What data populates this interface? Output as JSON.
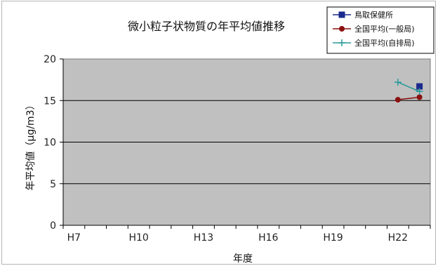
{
  "chart_data": {
    "type": "line",
    "title": "微小粒子状物質の年平均値推移",
    "xlabel": "年度",
    "ylabel": "年平均値（μg/m3）",
    "x_tick_labels": [
      "H7",
      "H10",
      "H13",
      "H16",
      "H19",
      "H22"
    ],
    "x_categories": [
      "H7",
      "H8",
      "H9",
      "H10",
      "H11",
      "H12",
      "H13",
      "H14",
      "H15",
      "H16",
      "H17",
      "H18",
      "H19",
      "H20",
      "H21",
      "H22",
      "H23"
    ],
    "ylim": [
      0,
      20
    ],
    "y_ticks": [
      "0",
      "5",
      "10",
      "15",
      "20"
    ],
    "grid": "horizontal",
    "legend_position": "top-right",
    "series": [
      {
        "name": "鳥取保健所",
        "color": "#1a2a8c",
        "marker": "square",
        "points": [
          {
            "x": "H23",
            "y": 16.7
          }
        ]
      },
      {
        "name": "全国平均(一般局)",
        "color": "#8b1010",
        "marker": "circle",
        "points": [
          {
            "x": "H22",
            "y": 15.1
          },
          {
            "x": "H23",
            "y": 15.4
          }
        ]
      },
      {
        "name": "全国平均(自排局)",
        "color": "#2a9a9a",
        "marker": "plus",
        "points": [
          {
            "x": "H22",
            "y": 17.2
          },
          {
            "x": "H23",
            "y": 16.1
          }
        ]
      }
    ]
  }
}
